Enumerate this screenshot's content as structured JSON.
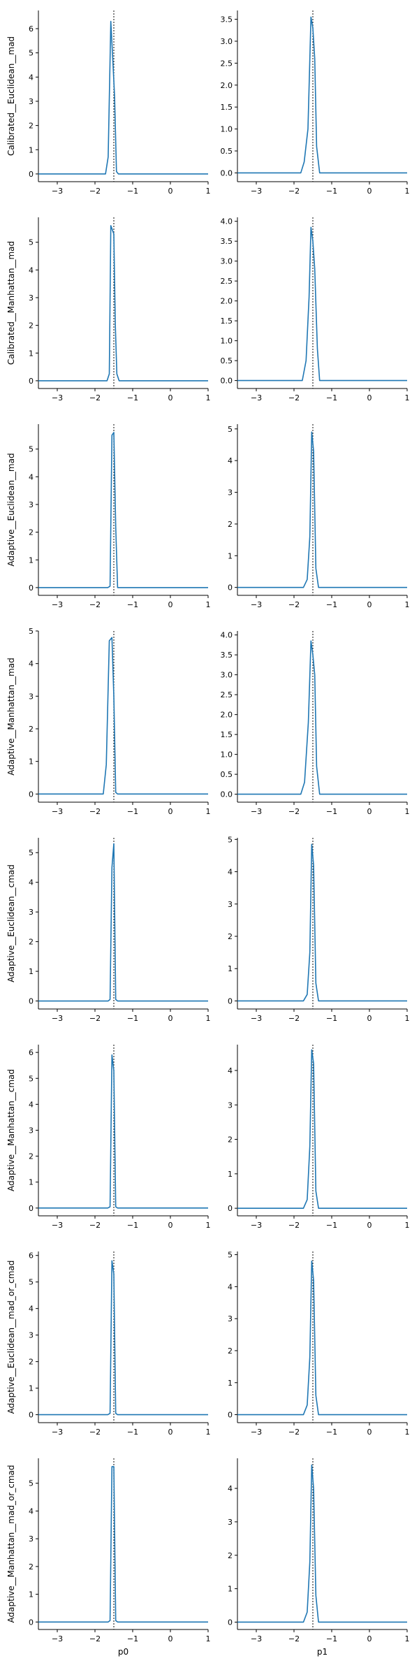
{
  "figure": {
    "columns": [
      "p0",
      "p1"
    ],
    "rows": [
      "Calibrated__Euclidean__mad",
      "Calibrated__Manhattan__mad",
      "Adaptive__Euclidean__mad",
      "Adaptive__Manhattan__mad",
      "Adaptive__Euclidean__cmad",
      "Adaptive__Manhattan__cmad",
      "Adaptive__Euclidean__mad_or_cmad",
      "Adaptive__Manhattan__mad_or_cmad"
    ]
  },
  "chart_data": [
    {
      "type": "line",
      "panel": "r0c0",
      "ylabel": "Calibrated__Euclidean__mad",
      "xlabel": "",
      "xlim": [
        -3.5,
        1
      ],
      "ylim": [
        -0.32,
        6.75
      ],
      "x_ticks": [
        -3,
        -2,
        -1,
        0,
        1
      ],
      "y_ticks": [
        0,
        1,
        2,
        3,
        4,
        5,
        6
      ],
      "ref_line": -1.5,
      "line_color": "#1f77b4",
      "x": [
        -3.5,
        -1.72,
        -1.65,
        -1.58,
        -1.53,
        -1.48,
        -1.43,
        -1.38,
        1
      ],
      "y": [
        0,
        0,
        0.7,
        6.3,
        4.8,
        3.2,
        0.1,
        0,
        0
      ]
    },
    {
      "type": "line",
      "panel": "r0c1",
      "ylabel": "",
      "xlabel": "",
      "xlim": [
        -3.5,
        1
      ],
      "ylim": [
        -0.2,
        3.7
      ],
      "x_ticks": [
        -3,
        -2,
        -1,
        0,
        1
      ],
      "y_ticks": [
        0.0,
        0.5,
        1.0,
        1.5,
        2.0,
        2.5,
        3.0,
        3.5
      ],
      "ref_line": -1.5,
      "line_color": "#1f77b4",
      "x": [
        -3.5,
        -1.82,
        -1.73,
        -1.63,
        -1.55,
        -1.5,
        -1.45,
        -1.4,
        -1.32,
        1
      ],
      "y": [
        0,
        0,
        0.25,
        1.0,
        3.55,
        3.3,
        2.6,
        0.6,
        0,
        0
      ]
    },
    {
      "type": "line",
      "panel": "r1c0",
      "ylabel": "Calibrated__Manhattan__mad",
      "xlabel": "",
      "xlim": [
        -3.5,
        1
      ],
      "ylim": [
        -0.28,
        5.9
      ],
      "x_ticks": [
        -3,
        -2,
        -1,
        0,
        1
      ],
      "y_ticks": [
        0,
        1,
        2,
        3,
        4,
        5
      ],
      "ref_line": -1.5,
      "line_color": "#1f77b4",
      "x": [
        -3.5,
        -1.68,
        -1.62,
        -1.58,
        -1.5,
        -1.46,
        -1.42,
        -1.36,
        1
      ],
      "y": [
        0,
        0,
        0.25,
        5.6,
        5.3,
        2.0,
        0.25,
        0,
        0
      ]
    },
    {
      "type": "line",
      "panel": "r1c1",
      "ylabel": "",
      "xlabel": "",
      "xlim": [
        -3.5,
        1
      ],
      "ylim": [
        -0.2,
        4.1
      ],
      "x_ticks": [
        -3,
        -2,
        -1,
        0,
        1
      ],
      "y_ticks": [
        0.0,
        0.5,
        1.0,
        1.5,
        2.0,
        2.5,
        3.0,
        3.5,
        4.0
      ],
      "ref_line": -1.5,
      "line_color": "#1f77b4",
      "x": [
        -3.5,
        -1.78,
        -1.68,
        -1.6,
        -1.55,
        -1.5,
        -1.45,
        -1.38,
        -1.32,
        1
      ],
      "y": [
        0,
        0,
        0.5,
        2.1,
        3.85,
        3.5,
        2.8,
        0.8,
        0,
        0
      ]
    },
    {
      "type": "line",
      "panel": "r2c0",
      "ylabel": "Adaptive__Euclidean__mad",
      "xlabel": "",
      "xlim": [
        -3.5,
        1
      ],
      "ylim": [
        -0.28,
        5.9
      ],
      "x_ticks": [
        -3,
        -2,
        -1,
        0,
        1
      ],
      "y_ticks": [
        0,
        1,
        2,
        3,
        4,
        5
      ],
      "ref_line": -1.5,
      "line_color": "#1f77b4",
      "x": [
        -3.5,
        -1.66,
        -1.6,
        -1.55,
        -1.5,
        -1.45,
        -1.4,
        1
      ],
      "y": [
        0,
        0,
        0.05,
        5.5,
        5.6,
        2.2,
        0,
        0
      ]
    },
    {
      "type": "line",
      "panel": "r2c1",
      "ylabel": "",
      "xlabel": "",
      "xlim": [
        -3.5,
        1
      ],
      "ylim": [
        -0.25,
        5.15
      ],
      "x_ticks": [
        -3,
        -2,
        -1,
        0,
        1
      ],
      "y_ticks": [
        0,
        1,
        2,
        3,
        4,
        5
      ],
      "ref_line": -1.5,
      "line_color": "#1f77b4",
      "x": [
        -3.5,
        -1.75,
        -1.65,
        -1.58,
        -1.53,
        -1.48,
        -1.42,
        -1.35,
        1
      ],
      "y": [
        0,
        0,
        0.25,
        1.6,
        4.9,
        4.3,
        0.6,
        0,
        0
      ]
    },
    {
      "type": "line",
      "panel": "r3c0",
      "ylabel": "Adaptive__Manhattan__mad",
      "xlabel": "",
      "xlim": [
        -3.5,
        1
      ],
      "ylim": [
        -0.25,
        5.0
      ],
      "x_ticks": [
        -3,
        -2,
        -1,
        0,
        1
      ],
      "y_ticks": [
        0,
        1,
        2,
        3,
        4,
        5
      ],
      "ref_line": -1.5,
      "line_color": "#1f77b4",
      "x": [
        -3.5,
        -1.78,
        -1.7,
        -1.62,
        -1.55,
        -1.5,
        -1.45,
        -1.4,
        1
      ],
      "y": [
        0,
        0,
        0.9,
        4.7,
        4.8,
        3.0,
        0.05,
        0,
        0
      ]
    },
    {
      "type": "line",
      "panel": "r3c1",
      "ylabel": "",
      "xlabel": "",
      "xlim": [
        -3.5,
        1
      ],
      "ylim": [
        -0.2,
        4.1
      ],
      "x_ticks": [
        -3,
        -2,
        -1,
        0,
        1
      ],
      "y_ticks": [
        0.0,
        0.5,
        1.0,
        1.5,
        2.0,
        2.5,
        3.0,
        3.5,
        4.0
      ],
      "ref_line": -1.5,
      "line_color": "#1f77b4",
      "x": [
        -3.5,
        -1.82,
        -1.72,
        -1.62,
        -1.55,
        -1.5,
        -1.45,
        -1.4,
        -1.32,
        1
      ],
      "y": [
        0,
        0,
        0.3,
        1.8,
        3.85,
        3.5,
        3.0,
        0.7,
        0,
        0
      ]
    },
    {
      "type": "line",
      "panel": "r4c0",
      "ylabel": "Adaptive__Euclidean__cmad",
      "xlabel": "",
      "xlim": [
        -3.5,
        1
      ],
      "ylim": [
        -0.27,
        5.5
      ],
      "x_ticks": [
        -3,
        -2,
        -1,
        0,
        1
      ],
      "y_ticks": [
        0,
        1,
        2,
        3,
        4,
        5
      ],
      "ref_line": -1.5,
      "line_color": "#1f77b4",
      "x": [
        -3.5,
        -1.65,
        -1.6,
        -1.55,
        -1.5,
        -1.45,
        -1.4,
        1
      ],
      "y": [
        0,
        0,
        0.05,
        4.5,
        5.3,
        0.05,
        0,
        0
      ]
    },
    {
      "type": "line",
      "panel": "r4c1",
      "ylabel": "",
      "xlabel": "",
      "xlim": [
        -3.5,
        1
      ],
      "ylim": [
        -0.25,
        5.05
      ],
      "x_ticks": [
        -3,
        -2,
        -1,
        0,
        1
      ],
      "y_ticks": [
        0,
        1,
        2,
        3,
        4,
        5
      ],
      "ref_line": -1.5,
      "line_color": "#1f77b4",
      "x": [
        -3.5,
        -1.75,
        -1.65,
        -1.58,
        -1.53,
        -1.48,
        -1.42,
        -1.35,
        1
      ],
      "y": [
        0,
        0,
        0.2,
        1.5,
        4.85,
        4.2,
        0.55,
        0,
        0
      ]
    },
    {
      "type": "line",
      "panel": "r5c0",
      "ylabel": "Adaptive__Manhattan__cmad",
      "xlabel": "",
      "xlim": [
        -3.5,
        1
      ],
      "ylim": [
        -0.3,
        6.3
      ],
      "x_ticks": [
        -3,
        -2,
        -1,
        0,
        1
      ],
      "y_ticks": [
        0,
        1,
        2,
        3,
        4,
        5,
        6
      ],
      "ref_line": -1.5,
      "line_color": "#1f77b4",
      "x": [
        -3.5,
        -1.66,
        -1.6,
        -1.55,
        -1.5,
        -1.45,
        -1.4,
        1
      ],
      "y": [
        0,
        0,
        0.05,
        5.9,
        5.3,
        0.05,
        0,
        0
      ]
    },
    {
      "type": "line",
      "panel": "r5c1",
      "ylabel": "",
      "xlabel": "",
      "xlim": [
        -3.5,
        1
      ],
      "ylim": [
        -0.22,
        4.75
      ],
      "x_ticks": [
        -3,
        -2,
        -1,
        0,
        1
      ],
      "y_ticks": [
        0,
        1,
        2,
        3,
        4
      ],
      "ref_line": -1.5,
      "line_color": "#1f77b4",
      "x": [
        -3.5,
        -1.75,
        -1.65,
        -1.58,
        -1.53,
        -1.48,
        -1.42,
        -1.35,
        1
      ],
      "y": [
        0,
        0,
        0.25,
        1.8,
        4.6,
        4.2,
        0.5,
        0,
        0
      ]
    },
    {
      "type": "line",
      "panel": "r6c0",
      "ylabel": "Adaptive__Euclidean__mad_or_cmad",
      "xlabel": "",
      "xlim": [
        -3.5,
        1
      ],
      "ylim": [
        -0.3,
        6.15
      ],
      "x_ticks": [
        -3,
        -2,
        -1,
        0,
        1
      ],
      "y_ticks": [
        0,
        1,
        2,
        3,
        4,
        5,
        6
      ],
      "ref_line": -1.5,
      "line_color": "#1f77b4",
      "x": [
        -3.5,
        -1.66,
        -1.6,
        -1.55,
        -1.5,
        -1.45,
        -1.4,
        1
      ],
      "y": [
        0,
        0,
        0.05,
        5.8,
        5.3,
        0.05,
        0,
        0
      ]
    },
    {
      "type": "line",
      "panel": "r6c1",
      "ylabel": "",
      "xlabel": "",
      "xlim": [
        -3.5,
        1
      ],
      "ylim": [
        -0.25,
        5.1
      ],
      "x_ticks": [
        -3,
        -2,
        -1,
        0,
        1
      ],
      "y_ticks": [
        0,
        1,
        2,
        3,
        4,
        5
      ],
      "ref_line": -1.5,
      "line_color": "#1f77b4",
      "x": [
        -3.5,
        -1.75,
        -1.65,
        -1.58,
        -1.53,
        -1.48,
        -1.42,
        -1.35,
        1
      ],
      "y": [
        0,
        0,
        0.3,
        1.8,
        4.8,
        4.2,
        0.6,
        0,
        0
      ]
    },
    {
      "type": "line",
      "panel": "r7c0",
      "ylabel": "Adaptive__Manhattan__mad_or_cmad",
      "xlabel": "p0",
      "xlim": [
        -3.5,
        1
      ],
      "ylim": [
        -0.27,
        5.9
      ],
      "x_ticks": [
        -3,
        -2,
        -1,
        0,
        1
      ],
      "y_ticks": [
        0,
        1,
        2,
        3,
        4,
        5
      ],
      "ref_line": -1.5,
      "line_color": "#1f77b4",
      "x": [
        -3.5,
        -1.65,
        -1.6,
        -1.55,
        -1.5,
        -1.45,
        -1.4,
        1
      ],
      "y": [
        0,
        0,
        0.05,
        5.6,
        5.6,
        0.05,
        0,
        0
      ]
    },
    {
      "type": "line",
      "panel": "r7c1",
      "ylabel": "",
      "xlabel": "p1",
      "xlim": [
        -3.5,
        1
      ],
      "ylim": [
        -0.22,
        4.9
      ],
      "x_ticks": [
        -3,
        -2,
        -1,
        0,
        1
      ],
      "y_ticks": [
        0,
        1,
        2,
        3,
        4
      ],
      "ref_line": -1.5,
      "line_color": "#1f77b4",
      "x": [
        -3.5,
        -1.75,
        -1.65,
        -1.58,
        -1.53,
        -1.48,
        -1.42,
        -1.35,
        1
      ],
      "y": [
        0,
        0,
        0.3,
        1.8,
        4.7,
        4.0,
        0.8,
        0,
        0
      ]
    }
  ]
}
